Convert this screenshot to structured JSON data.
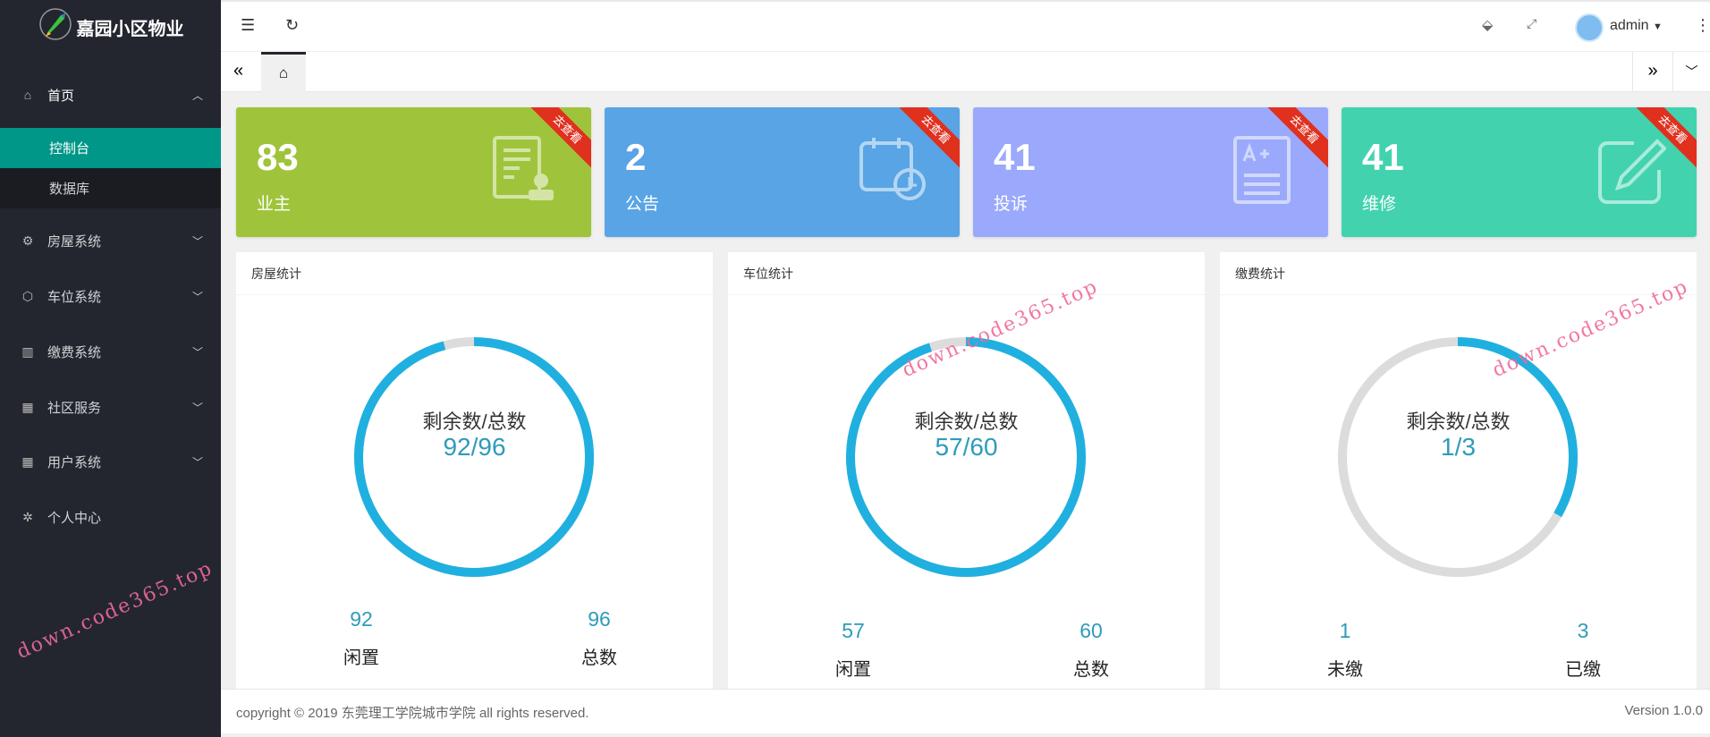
{
  "app": {
    "title": "嘉园小区物业"
  },
  "sidebar": {
    "items": [
      {
        "label": "首页",
        "icon": "home-icon",
        "open": true,
        "children": [
          {
            "label": "控制台",
            "active": true
          },
          {
            "label": "数据库"
          }
        ]
      },
      {
        "label": "房屋系统",
        "icon": "gear-icon"
      },
      {
        "label": "车位系统",
        "icon": "cube-icon"
      },
      {
        "label": "缴费系统",
        "icon": "ledger-icon"
      },
      {
        "label": "社区服务",
        "icon": "apps-icon"
      },
      {
        "label": "用户系统",
        "icon": "apps-icon"
      },
      {
        "label": "个人中心",
        "icon": "settings-icon"
      }
    ]
  },
  "header": {
    "user": "admin"
  },
  "cards": [
    {
      "value": "83",
      "label": "业主",
      "ribbon": "去查看",
      "color": "#9fc43b",
      "icon": "certificate-icon"
    },
    {
      "value": "2",
      "label": "公告",
      "ribbon": "去查看",
      "color": "#58a4e5",
      "icon": "calendar-clock-icon"
    },
    {
      "value": "41",
      "label": "投诉",
      "ribbon": "去查看",
      "color": "#9aa9fb",
      "icon": "grade-document-icon"
    },
    {
      "value": "41",
      "label": "维修",
      "ribbon": "去查看",
      "color": "#42d3ae",
      "icon": "edit-icon"
    }
  ],
  "panels": [
    {
      "title": "房屋统计",
      "center_label": "剩余数/总数",
      "center_value": "92/96",
      "remaining": 92,
      "total": 96,
      "left_num": "92",
      "left_label": "闲置",
      "right_num": "96",
      "right_label": "总数"
    },
    {
      "title": "车位统计",
      "center_label": "剩余数/总数",
      "center_value": "57/60",
      "remaining": 57,
      "total": 60,
      "left_num": "57",
      "left_label": "闲置",
      "right_num": "60",
      "right_label": "总数"
    },
    {
      "title": "缴费统计",
      "center_label": "剩余数/总数",
      "center_value": "1/3",
      "remaining": 1,
      "total": 3,
      "left_num": "1",
      "left_label": "未缴",
      "right_num": "3",
      "right_label": "已缴"
    }
  ],
  "footer": {
    "copyright": "copyright © 2019 东莞理工学院城市学院 all rights reserved.",
    "version": "Version 1.0.0"
  },
  "watermark": "down.code365.top",
  "colors": {
    "ring": "#1fb0e0",
    "ring_bg": "#dcdcdc",
    "active": "#009688"
  }
}
